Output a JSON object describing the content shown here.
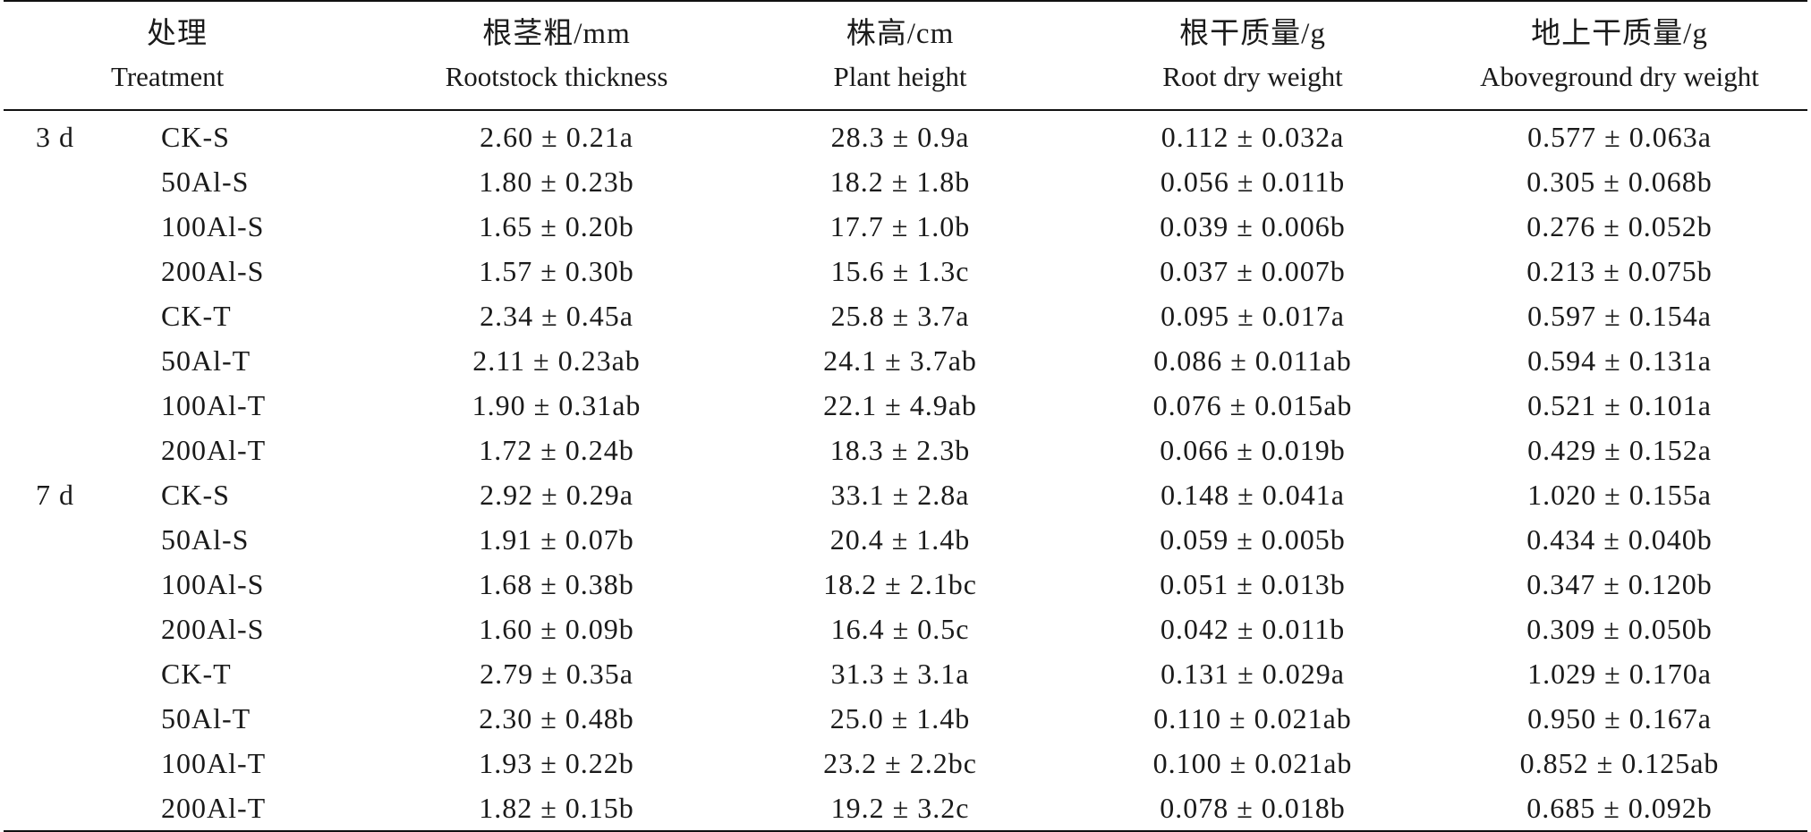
{
  "headers": {
    "treatment": {
      "zh": "处理",
      "en": "Treatment"
    },
    "rootstock": {
      "zh": "根茎粗/mm",
      "en": "Rootstock thickness"
    },
    "height": {
      "zh": "株高/cm",
      "en": "Plant height"
    },
    "root_dry": {
      "zh": "根干质量/g",
      "en": "Root dry weight"
    },
    "above_dry": {
      "zh": "地上干质量/g",
      "en": "Aboveground dry weight"
    }
  },
  "rows": [
    {
      "time": "3 d",
      "treatment": "CK-S",
      "rootstock": "2.60 ± 0.21a",
      "height": "28.3 ± 0.9a",
      "root_dry": "0.112 ± 0.032a",
      "above_dry": "0.577 ± 0.063a"
    },
    {
      "time": "",
      "treatment": "50Al-S",
      "rootstock": "1.80 ± 0.23b",
      "height": "18.2 ± 1.8b",
      "root_dry": "0.056 ± 0.011b",
      "above_dry": "0.305 ± 0.068b"
    },
    {
      "time": "",
      "treatment": "100Al-S",
      "rootstock": "1.65 ± 0.20b",
      "height": "17.7 ± 1.0b",
      "root_dry": "0.039 ± 0.006b",
      "above_dry": "0.276 ± 0.052b"
    },
    {
      "time": "",
      "treatment": "200Al-S",
      "rootstock": "1.57 ± 0.30b",
      "height": "15.6 ± 1.3c",
      "root_dry": "0.037 ± 0.007b",
      "above_dry": "0.213 ± 0.075b"
    },
    {
      "time": "",
      "treatment": "CK-T",
      "rootstock": "2.34 ± 0.45a",
      "height": "25.8 ± 3.7a",
      "root_dry": "0.095 ± 0.017a",
      "above_dry": "0.597 ± 0.154a"
    },
    {
      "time": "",
      "treatment": "50Al-T",
      "rootstock": "2.11 ± 0.23ab",
      "height": "24.1 ± 3.7ab",
      "root_dry": "0.086 ± 0.011ab",
      "above_dry": "0.594 ± 0.131a"
    },
    {
      "time": "",
      "treatment": "100Al-T",
      "rootstock": "1.90 ± 0.31ab",
      "height": "22.1 ± 4.9ab",
      "root_dry": "0.076 ± 0.015ab",
      "above_dry": "0.521 ± 0.101a"
    },
    {
      "time": "",
      "treatment": "200Al-T",
      "rootstock": "1.72 ± 0.24b",
      "height": "18.3 ± 2.3b",
      "root_dry": "0.066 ± 0.019b",
      "above_dry": "0.429 ± 0.152a"
    },
    {
      "time": "7 d",
      "treatment": "CK-S",
      "rootstock": "2.92 ± 0.29a",
      "height": "33.1 ± 2.8a",
      "root_dry": "0.148 ± 0.041a",
      "above_dry": "1.020 ± 0.155a"
    },
    {
      "time": "",
      "treatment": "50Al-S",
      "rootstock": "1.91 ± 0.07b",
      "height": "20.4 ± 1.4b",
      "root_dry": "0.059 ± 0.005b",
      "above_dry": "0.434 ± 0.040b"
    },
    {
      "time": "",
      "treatment": "100Al-S",
      "rootstock": "1.68 ± 0.38b",
      "height": "18.2 ± 2.1bc",
      "root_dry": "0.051 ± 0.013b",
      "above_dry": "0.347 ± 0.120b"
    },
    {
      "time": "",
      "treatment": "200Al-S",
      "rootstock": "1.60 ± 0.09b",
      "height": "16.4 ± 0.5c",
      "root_dry": "0.042 ± 0.011b",
      "above_dry": "0.309 ± 0.050b"
    },
    {
      "time": "",
      "treatment": "CK-T",
      "rootstock": "2.79 ± 0.35a",
      "height": "31.3 ± 3.1a",
      "root_dry": "0.131 ± 0.029a",
      "above_dry": "1.029 ± 0.170a"
    },
    {
      "time": "",
      "treatment": "50Al-T",
      "rootstock": "2.30 ± 0.48b",
      "height": "25.0 ± 1.4b",
      "root_dry": "0.110 ± 0.021ab",
      "above_dry": "0.950 ± 0.167a"
    },
    {
      "time": "",
      "treatment": "100Al-T",
      "rootstock": "1.93 ± 0.22b",
      "height": "23.2 ± 2.2bc",
      "root_dry": "0.100 ± 0.021ab",
      "above_dry": "0.852 ± 0.125ab"
    },
    {
      "time": "",
      "treatment": "200Al-T",
      "rootstock": "1.82 ± 0.15b",
      "height": "19.2 ± 3.2c",
      "root_dry": "0.078 ± 0.018b",
      "above_dry": "0.685 ± 0.092b"
    }
  ]
}
